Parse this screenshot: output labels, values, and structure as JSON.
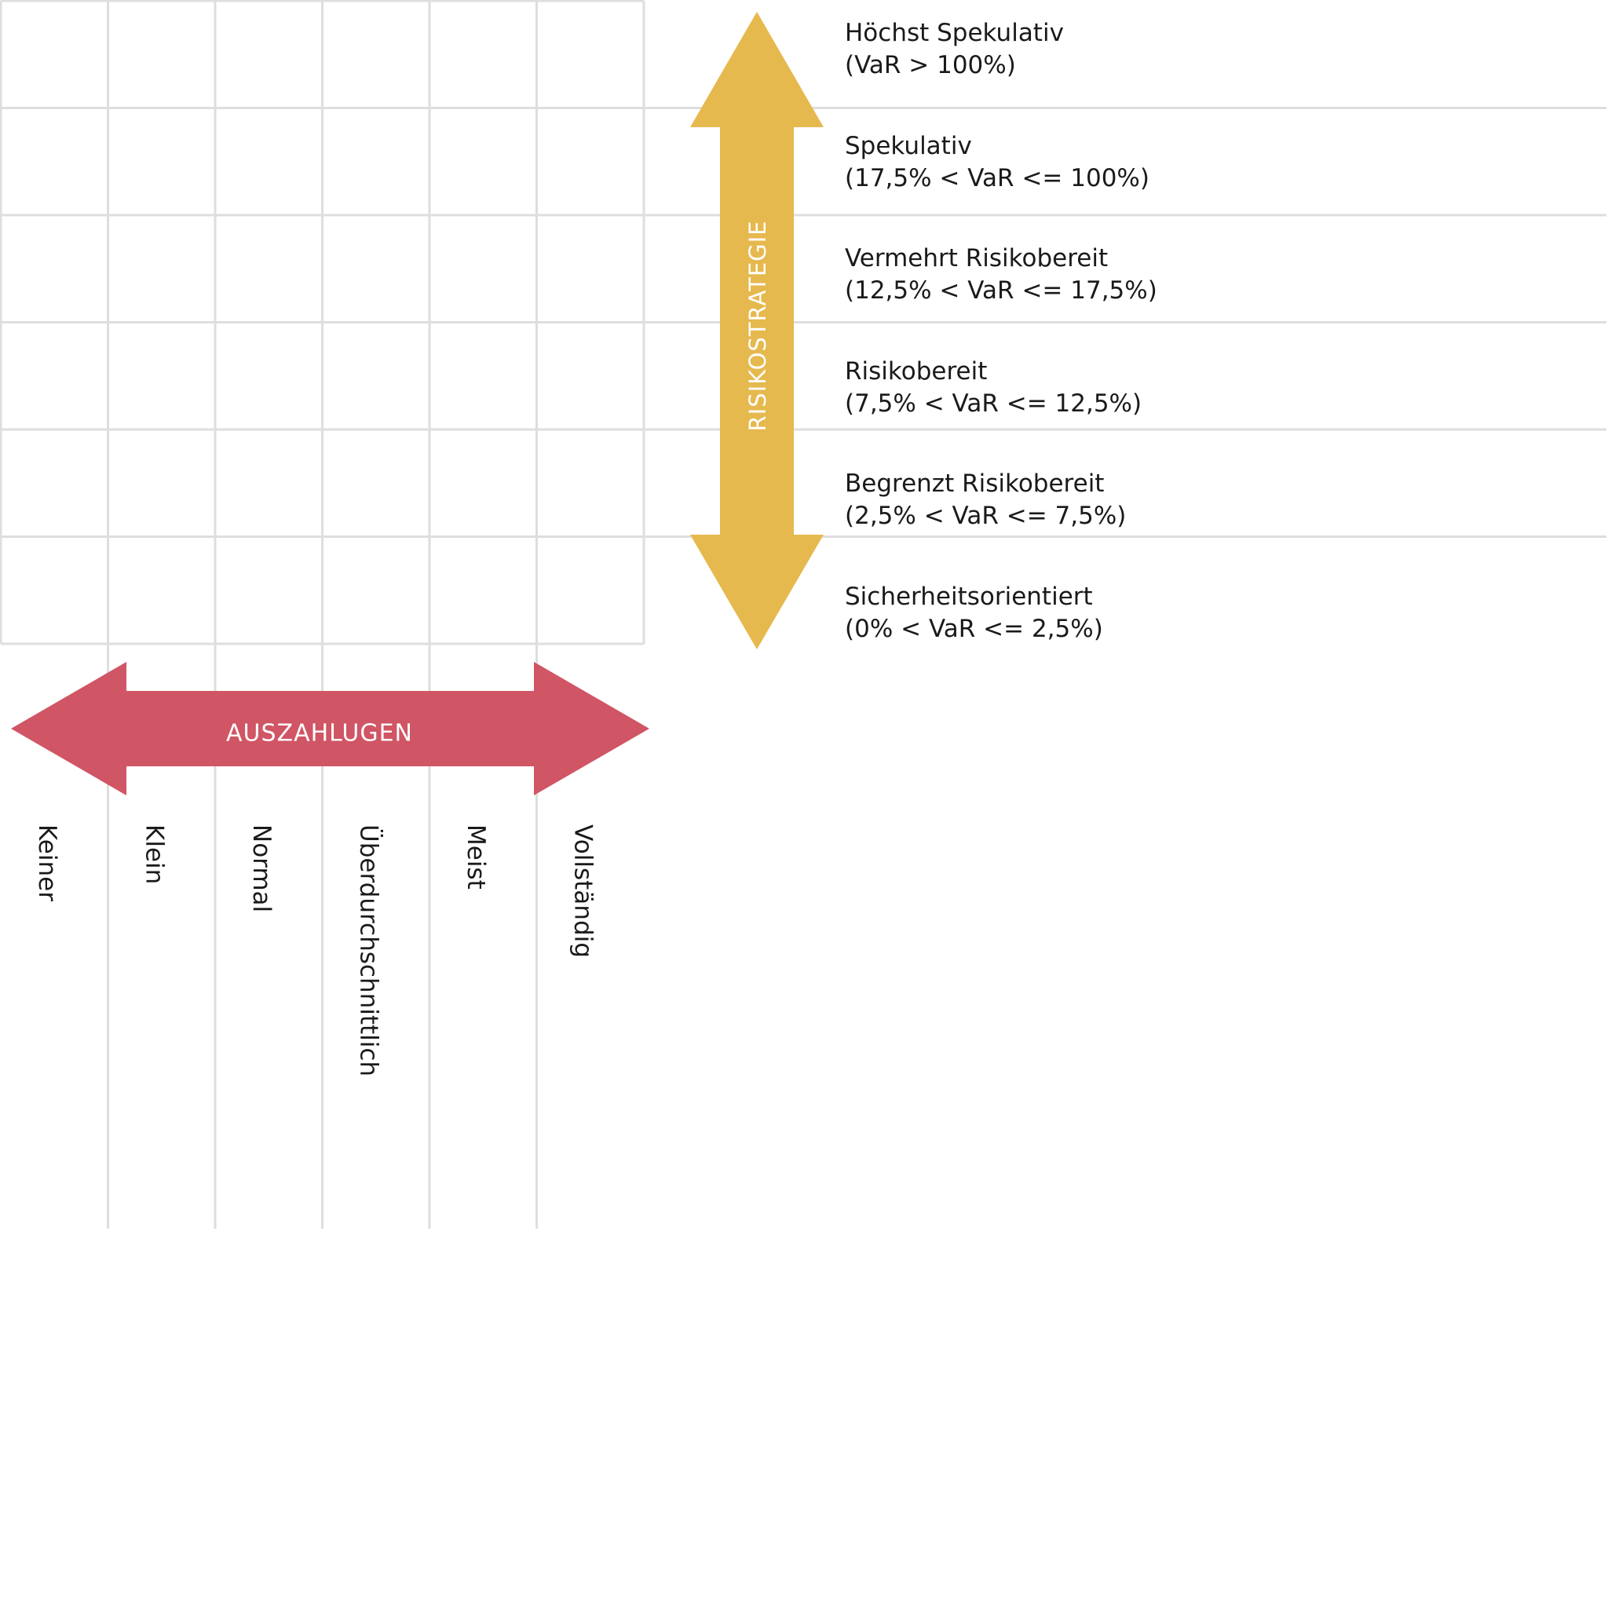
{
  "colors": {
    "grid": "#dedede",
    "risk_arrow": "#e6b94e",
    "payout_arrow": "#d05565",
    "arrow_text": "#ffffff",
    "label_text": "#1a1a1a"
  },
  "risk_axis": {
    "title": "RISIKOSTRATEGIE",
    "levels": [
      {
        "name": "Höchst Spekulativ",
        "range": "(VaR > 100%)"
      },
      {
        "name": "Spekulativ",
        "range": "(17,5% < VaR <= 100%)"
      },
      {
        "name": "Vermehrt Risikobereit",
        "range": "(12,5% < VaR <= 17,5%)"
      },
      {
        "name": "Risikobereit",
        "range": "(7,5% < VaR <= 12,5%)"
      },
      {
        "name": "Begrenzt Risikobereit",
        "range": "(2,5% < VaR <= 7,5%)"
      },
      {
        "name": "Sicherheitsorientiert",
        "range": "(0% < VaR <= 2,5%)"
      }
    ]
  },
  "payout_axis": {
    "title": "AUSZAHLUGEN",
    "levels": [
      "Keiner",
      "Klein",
      "Normal",
      "Überdurchschnittlich",
      "Meist",
      "Vollständig"
    ]
  }
}
